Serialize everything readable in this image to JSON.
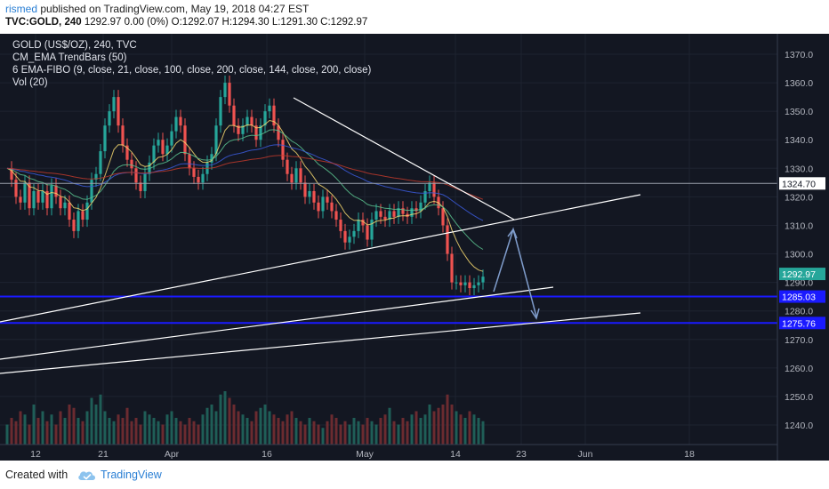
{
  "header": {
    "author": "rismed",
    "published_text": " published on TradingView.com, May 19, 2018 04:27 EST",
    "symbol": "TVC:GOLD, 240",
    "quote": " 1292.97 0.00 (0%) O:1292.07 H:1294.30 L:1291.30 C:1292.97"
  },
  "legend": {
    "line1": "GOLD (US$/OZ), 240, TVC",
    "line2": "CM_EMA TrendBars (50)",
    "line3": "6 EMA-FIBO (9, close, 21, close, 100, close, 200, close, 144, close, 200, close)",
    "line4": "Vol (20)"
  },
  "footer": {
    "created_with": "Created with",
    "brand": "TradingView"
  },
  "colors": {
    "background": "#131722",
    "up_candle": "#26a69a",
    "down_candle": "#ef5350",
    "trendline": "#ffffff",
    "level_line": "#1a1aff",
    "arrow": "#7f9ccb"
  },
  "chart_data": {
    "type": "candlestick",
    "y_axis": {
      "range": [
        1230,
        1377
      ],
      "ticks": [
        1240,
        1250,
        1260,
        1270,
        1280,
        1290,
        1300,
        1310,
        1320,
        1330,
        1340,
        1350,
        1360,
        1370
      ]
    },
    "x_axis": {
      "ticks": [
        "12",
        "21",
        "Apr",
        "16",
        "May",
        "14",
        "23",
        "Jun",
        "18"
      ]
    },
    "price_labels": [
      {
        "value": 1324.7,
        "label": "1324.70",
        "kind": "resistance"
      },
      {
        "value": 1292.97,
        "label": "1292.97",
        "kind": "last"
      },
      {
        "value": 1285.03,
        "label": "1285.03",
        "kind": "level"
      },
      {
        "value": 1275.76,
        "label": "1275.76",
        "kind": "level"
      }
    ],
    "price_path": [
      1330,
      1326,
      1320,
      1318,
      1325,
      1316,
      1322,
      1318,
      1322,
      1316,
      1324,
      1320,
      1316,
      1318,
      1312,
      1308,
      1315,
      1312,
      1318,
      1326,
      1328,
      1336,
      1345,
      1350,
      1355,
      1345,
      1338,
      1333,
      1330,
      1325,
      1322,
      1328,
      1332,
      1338,
      1340,
      1335,
      1338,
      1343,
      1348,
      1345,
      1335,
      1330,
      1327,
      1325,
      1328,
      1332,
      1335,
      1345,
      1355,
      1360,
      1352,
      1345,
      1342,
      1345,
      1348,
      1345,
      1340,
      1345,
      1350,
      1352,
      1345,
      1340,
      1333,
      1328,
      1325,
      1330,
      1325,
      1320,
      1322,
      1318,
      1315,
      1320,
      1318,
      1315,
      1312,
      1308,
      1304,
      1306,
      1308,
      1312,
      1310,
      1305,
      1312,
      1315,
      1313,
      1312,
      1315,
      1313,
      1316,
      1314,
      1313,
      1316,
      1315,
      1318,
      1322,
      1325,
      1320,
      1316,
      1310,
      1300,
      1290,
      1290,
      1289,
      1290,
      1288,
      1289,
      1290,
      1292
    ],
    "volume_level": [
      0.3,
      0.4,
      0.35,
      0.5,
      0.45,
      0.3,
      0.6,
      0.4,
      0.5,
      0.35,
      0.45,
      0.3,
      0.5,
      0.4,
      0.6,
      0.55,
      0.4,
      0.35,
      0.5,
      0.7,
      0.6,
      0.75,
      0.5,
      0.4,
      0.35,
      0.45,
      0.4,
      0.55,
      0.35,
      0.4,
      0.3,
      0.5,
      0.45,
      0.4,
      0.35,
      0.3,
      0.45,
      0.5,
      0.4,
      0.35,
      0.3,
      0.4,
      0.35,
      0.3,
      0.45,
      0.55,
      0.6,
      0.5,
      0.75,
      0.8,
      0.7,
      0.6,
      0.5,
      0.45,
      0.4,
      0.35,
      0.5,
      0.55,
      0.6,
      0.5,
      0.45,
      0.4,
      0.35,
      0.45,
      0.5,
      0.4,
      0.35,
      0.3,
      0.4,
      0.35,
      0.3,
      0.25,
      0.35,
      0.45,
      0.4,
      0.3,
      0.35,
      0.3,
      0.4,
      0.35,
      0.3,
      0.4,
      0.35,
      0.3,
      0.4,
      0.45,
      0.55,
      0.35,
      0.3,
      0.4,
      0.35,
      0.45,
      0.5,
      0.4,
      0.45,
      0.6,
      0.5,
      0.55,
      0.6,
      0.75,
      0.6,
      0.5,
      0.45,
      0.4,
      0.5,
      0.45,
      0.4,
      0.35
    ],
    "resistance_line": {
      "from": [
        0,
        1324.7
      ],
      "to": [
        174,
        1324.7
      ]
    }
  }
}
